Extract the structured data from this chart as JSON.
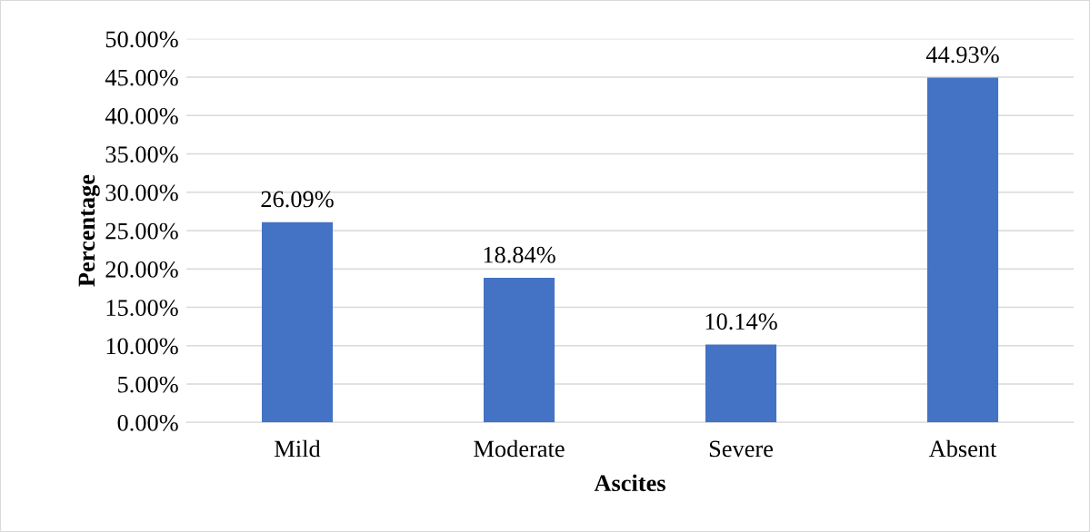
{
  "chart_data": {
    "type": "bar",
    "xlabel": "Ascites",
    "ylabel": "Percentage",
    "categories": [
      "Mild",
      "Moderate",
      "Severe",
      "Absent"
    ],
    "values": [
      26.09,
      18.84,
      10.14,
      44.93
    ],
    "color": "#4472c4",
    "value_labels": [
      "26.09%",
      "18.84%",
      "10.14%",
      "44.93%"
    ],
    "ylim": [
      0,
      50
    ],
    "yticks": [
      {
        "value": 0,
        "label": "0.00%"
      },
      {
        "value": 5,
        "label": "5.00%"
      },
      {
        "value": 10,
        "label": "10.00%"
      },
      {
        "value": 15,
        "label": "15.00%"
      },
      {
        "value": 20,
        "label": "20.00%"
      },
      {
        "value": 25,
        "label": "25.00%"
      },
      {
        "value": 30,
        "label": "30.00%"
      },
      {
        "value": 35,
        "label": "35.00%"
      },
      {
        "value": 40,
        "label": "40.00%"
      },
      {
        "value": 45,
        "label": "45.00%"
      },
      {
        "value": 50,
        "label": "50.00%"
      }
    ],
    "grid": "y"
  }
}
